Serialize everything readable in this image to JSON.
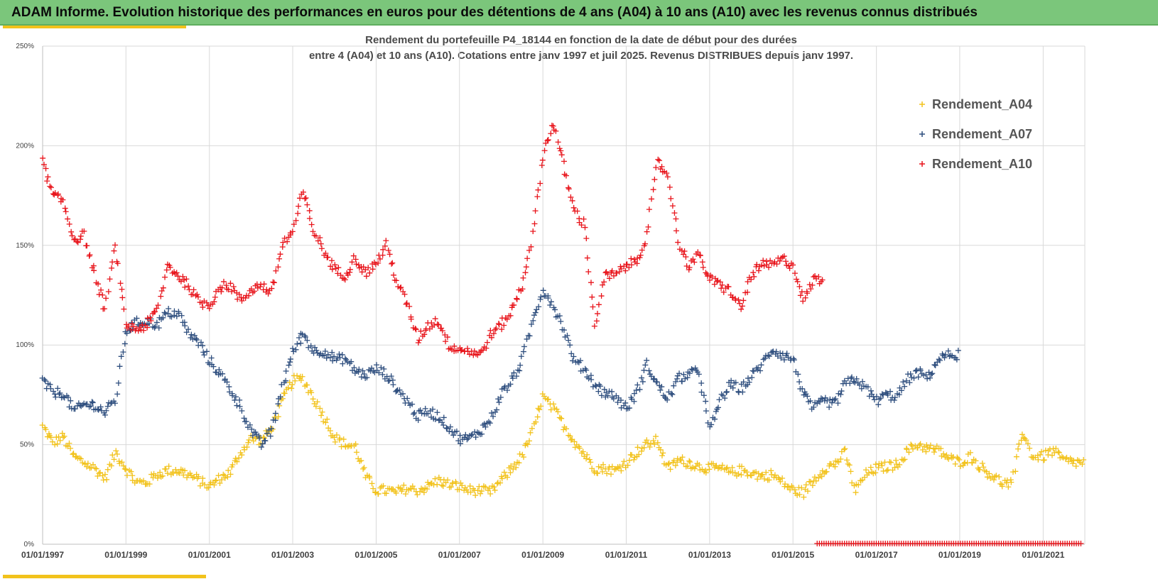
{
  "header": {
    "title": "ADAM Informe. Evolution historique des performances en euros pour des détentions de 4 ans (A04) à 10 ans (A10) avec les revenus connus distribués"
  },
  "colors": {
    "header_bg": "#7bc67b",
    "accent": "#f2c21b",
    "grid": "#d9d9d9",
    "A04": "#f2c21b",
    "A07": "#2e4e7e",
    "A10": "#e8141b"
  },
  "chart_data": {
    "type": "scatter",
    "marker": "plus",
    "title": "Rendement du portefeuille P4_18144 en fonction de la date de début pour des durées",
    "subtitle": "entre 4 (A04) et 10 ans (A10). Cotations entre janv 1997 et juil 2025. Revenus DISTRIBUES depuis janv 1997.",
    "y_tick_labels": [
      "0%",
      "50%",
      "100%",
      "150%",
      "200%",
      "250%"
    ],
    "x_tick_labels": [
      "01/01/1997",
      "01/01/1999",
      "01/01/2001",
      "01/01/2003",
      "01/01/2005",
      "01/01/2007",
      "01/01/2009",
      "01/01/2011",
      "01/01/2013",
      "01/01/2015",
      "01/01/2017",
      "01/01/2019",
      "01/01/2021"
    ],
    "x_range": [
      "1997-01-01",
      "2022-01-01"
    ],
    "y_range": [
      0,
      250
    ],
    "grid": true,
    "legend_position": "right",
    "series": [
      {
        "name": "Rendement_A04",
        "color": "#f2c21b",
        "points": [
          [
            "1997-01",
            59
          ],
          [
            "1997-04",
            51
          ],
          [
            "1997-07",
            54
          ],
          [
            "1997-10",
            44
          ],
          [
            "1998-01",
            41
          ],
          [
            "1998-04",
            38
          ],
          [
            "1998-07",
            33
          ],
          [
            "1998-10",
            46
          ],
          [
            "1999-01",
            38
          ],
          [
            "1999-04",
            31
          ],
          [
            "1999-07",
            31
          ],
          [
            "1999-10",
            35
          ],
          [
            "2000-01",
            37
          ],
          [
            "2000-04",
            37
          ],
          [
            "2000-07",
            35
          ],
          [
            "2000-10",
            32
          ],
          [
            "2001-01",
            29
          ],
          [
            "2001-04",
            33
          ],
          [
            "2001-07",
            36
          ],
          [
            "2001-10",
            46
          ],
          [
            "2002-01",
            53
          ],
          [
            "2002-04",
            52
          ],
          [
            "2002-07",
            58
          ],
          [
            "2002-10",
            72
          ],
          [
            "2003-01",
            82
          ],
          [
            "2003-04",
            83
          ],
          [
            "2003-07",
            74
          ],
          [
            "2003-10",
            64
          ],
          [
            "2004-01",
            54
          ],
          [
            "2004-04",
            50
          ],
          [
            "2004-07",
            49
          ],
          [
            "2004-10",
            34
          ],
          [
            "2005-01",
            27
          ],
          [
            "2005-04",
            27
          ],
          [
            "2005-07",
            26
          ],
          [
            "2005-10",
            28
          ],
          [
            "2006-01",
            27
          ],
          [
            "2006-04",
            29
          ],
          [
            "2006-07",
            32
          ],
          [
            "2006-10",
            30
          ],
          [
            "2007-01",
            29
          ],
          [
            "2007-04",
            27
          ],
          [
            "2007-07",
            27
          ],
          [
            "2007-10",
            26
          ],
          [
            "2008-01",
            32
          ],
          [
            "2008-04",
            38
          ],
          [
            "2008-07",
            44
          ],
          [
            "2008-10",
            56
          ],
          [
            "2009-01",
            74
          ],
          [
            "2009-04",
            68
          ],
          [
            "2009-07",
            60
          ],
          [
            "2009-10",
            52
          ],
          [
            "2010-01",
            45
          ],
          [
            "2010-04",
            38
          ],
          [
            "2010-07",
            38
          ],
          [
            "2010-10",
            37
          ],
          [
            "2011-01",
            41
          ],
          [
            "2011-04",
            46
          ],
          [
            "2011-07",
            50
          ],
          [
            "2011-10",
            52
          ],
          [
            "2012-01",
            38
          ],
          [
            "2012-04",
            42
          ],
          [
            "2012-07",
            41
          ],
          [
            "2012-10",
            39
          ],
          [
            "2013-01",
            38
          ],
          [
            "2013-04",
            38
          ],
          [
            "2013-07",
            36
          ],
          [
            "2013-10",
            37
          ],
          [
            "2014-01",
            36
          ],
          [
            "2014-04",
            34
          ],
          [
            "2014-07",
            35
          ],
          [
            "2014-10",
            31
          ],
          [
            "2015-01",
            27
          ],
          [
            "2015-04",
            26
          ],
          [
            "2015-07",
            32
          ],
          [
            "2015-10",
            38
          ],
          [
            "2016-01",
            40
          ],
          [
            "2016-04",
            46
          ],
          [
            "2016-07",
            27
          ],
          [
            "2016-10",
            35
          ],
          [
            "2017-01",
            38
          ],
          [
            "2017-04",
            39
          ],
          [
            "2017-07",
            40
          ],
          [
            "2017-10",
            47
          ],
          [
            "2018-01",
            50
          ],
          [
            "2018-04",
            48
          ],
          [
            "2018-07",
            47
          ],
          [
            "2018-10",
            43
          ],
          [
            "2019-01",
            41
          ],
          [
            "2019-04",
            44
          ],
          [
            "2019-07",
            39
          ],
          [
            "2019-10",
            35
          ],
          [
            "2020-01",
            31
          ],
          [
            "2020-04",
            30
          ],
          [
            "2020-07",
            57
          ],
          [
            "2020-10",
            44
          ],
          [
            "2021-01",
            44
          ],
          [
            "2021-04",
            47
          ],
          [
            "2021-07",
            42
          ],
          [
            "2021-10",
            41
          ]
        ]
      },
      {
        "name": "Rendement_A07",
        "color": "#2e4e7e",
        "points": [
          [
            "1997-01",
            82
          ],
          [
            "1997-04",
            76
          ],
          [
            "1997-07",
            76
          ],
          [
            "1997-10",
            67
          ],
          [
            "1998-01",
            70
          ],
          [
            "1998-04",
            70
          ],
          [
            "1998-07",
            66
          ],
          [
            "1998-10",
            72
          ],
          [
            "1999-01",
            107
          ],
          [
            "1999-04",
            111
          ],
          [
            "1999-07",
            112
          ],
          [
            "1999-10",
            110
          ],
          [
            "2000-01",
            116
          ],
          [
            "2000-04",
            116
          ],
          [
            "2000-07",
            106
          ],
          [
            "2000-10",
            101
          ],
          [
            "2001-01",
            92
          ],
          [
            "2001-04",
            86
          ],
          [
            "2001-07",
            78
          ],
          [
            "2001-10",
            69
          ],
          [
            "2002-01",
            57
          ],
          [
            "2002-04",
            50
          ],
          [
            "2002-07",
            57
          ],
          [
            "2002-10",
            79
          ],
          [
            "2003-01",
            96
          ],
          [
            "2003-04",
            106
          ],
          [
            "2003-07",
            97
          ],
          [
            "2003-10",
            97
          ],
          [
            "2004-01",
            93
          ],
          [
            "2004-04",
            93
          ],
          [
            "2004-07",
            87
          ],
          [
            "2004-10",
            85
          ],
          [
            "2005-01",
            88
          ],
          [
            "2005-04",
            85
          ],
          [
            "2005-07",
            78
          ],
          [
            "2005-10",
            72
          ],
          [
            "2006-01",
            64
          ],
          [
            "2006-04",
            67
          ],
          [
            "2006-07",
            64
          ],
          [
            "2006-10",
            59
          ],
          [
            "2007-01",
            53
          ],
          [
            "2007-04",
            53
          ],
          [
            "2007-07",
            57
          ],
          [
            "2007-10",
            62
          ],
          [
            "2008-01",
            75
          ],
          [
            "2008-04",
            82
          ],
          [
            "2008-07",
            92
          ],
          [
            "2008-10",
            112
          ],
          [
            "2009-01",
            128
          ],
          [
            "2009-04",
            120
          ],
          [
            "2009-07",
            108
          ],
          [
            "2009-10",
            92
          ],
          [
            "2010-01",
            88
          ],
          [
            "2010-04",
            80
          ],
          [
            "2010-07",
            76
          ],
          [
            "2010-10",
            74
          ],
          [
            "2011-01",
            68
          ],
          [
            "2011-04",
            76
          ],
          [
            "2011-07",
            90
          ],
          [
            "2011-10",
            80
          ],
          [
            "2012-01",
            73
          ],
          [
            "2012-04",
            83
          ],
          [
            "2012-07",
            85
          ],
          [
            "2012-10",
            87
          ],
          [
            "2013-01",
            57
          ],
          [
            "2013-04",
            72
          ],
          [
            "2013-07",
            80
          ],
          [
            "2013-10",
            78
          ],
          [
            "2014-01",
            84
          ],
          [
            "2014-04",
            90
          ],
          [
            "2014-07",
            98
          ],
          [
            "2014-10",
            95
          ],
          [
            "2015-01",
            93
          ],
          [
            "2015-04",
            75
          ],
          [
            "2015-07",
            68
          ],
          [
            "2015-10",
            72
          ],
          [
            "2016-01",
            70
          ],
          [
            "2016-04",
            80
          ],
          [
            "2016-07",
            83
          ],
          [
            "2016-10",
            78
          ],
          [
            "2017-01",
            72
          ],
          [
            "2017-04",
            75
          ],
          [
            "2017-07",
            74
          ],
          [
            "2017-10",
            83
          ],
          [
            "2018-01",
            86
          ],
          [
            "2018-04",
            84
          ],
          [
            "2018-07",
            93
          ],
          [
            "2018-10",
            95
          ]
        ]
      },
      {
        "name": "Rendement_A10",
        "color": "#e8141b",
        "points": [
          [
            "1997-01",
            192
          ],
          [
            "1997-04",
            175
          ],
          [
            "1997-07",
            172
          ],
          [
            "1997-10",
            153
          ],
          [
            "1998-01",
            155
          ],
          [
            "1998-04",
            135
          ],
          [
            "1998-07",
            118
          ],
          [
            "1998-10",
            150
          ],
          [
            "1999-01",
            110
          ],
          [
            "1999-04",
            108
          ],
          [
            "1999-07",
            110
          ],
          [
            "1999-10",
            117
          ],
          [
            "2000-01",
            140
          ],
          [
            "2000-04",
            135
          ],
          [
            "2000-07",
            130
          ],
          [
            "2000-10",
            122
          ],
          [
            "2001-01",
            120
          ],
          [
            "2001-04",
            129
          ],
          [
            "2001-07",
            130
          ],
          [
            "2001-10",
            122
          ],
          [
            "2002-01",
            128
          ],
          [
            "2002-04",
            130
          ],
          [
            "2002-07",
            126
          ],
          [
            "2002-10",
            150
          ],
          [
            "2003-01",
            157
          ],
          [
            "2003-04",
            177
          ],
          [
            "2003-07",
            158
          ],
          [
            "2003-10",
            147
          ],
          [
            "2004-01",
            138
          ],
          [
            "2004-04",
            135
          ],
          [
            "2004-07",
            144
          ],
          [
            "2004-10",
            136
          ],
          [
            "2005-01",
            141
          ],
          [
            "2005-04",
            150
          ],
          [
            "2005-07",
            132
          ],
          [
            "2005-10",
            120
          ],
          [
            "2006-01",
            103
          ],
          [
            "2006-04",
            110
          ],
          [
            "2006-07",
            112
          ],
          [
            "2006-10",
            100
          ],
          [
            "2007-01",
            98
          ],
          [
            "2007-04",
            97
          ],
          [
            "2007-07",
            95
          ],
          [
            "2007-10",
            105
          ],
          [
            "2008-01",
            110
          ],
          [
            "2008-04",
            117
          ],
          [
            "2008-07",
            130
          ],
          [
            "2008-10",
            155
          ],
          [
            "2009-01",
            195
          ],
          [
            "2009-04",
            212
          ],
          [
            "2009-07",
            190
          ],
          [
            "2009-10",
            168
          ],
          [
            "2010-01",
            160
          ],
          [
            "2010-04",
            110
          ],
          [
            "2010-07",
            135
          ],
          [
            "2010-10",
            135
          ],
          [
            "2011-01",
            140
          ],
          [
            "2011-04",
            142
          ],
          [
            "2011-07",
            155
          ],
          [
            "2011-10",
            192
          ],
          [
            "2012-01",
            185
          ],
          [
            "2012-04",
            152
          ],
          [
            "2012-07",
            140
          ],
          [
            "2012-10",
            145
          ],
          [
            "2013-01",
            133
          ],
          [
            "2013-04",
            130
          ],
          [
            "2013-07",
            127
          ],
          [
            "2013-10",
            118
          ],
          [
            "2014-01",
            135
          ],
          [
            "2014-04",
            140
          ],
          [
            "2014-07",
            140
          ],
          [
            "2014-10",
            143
          ],
          [
            "2015-01",
            140
          ],
          [
            "2015-04",
            122
          ],
          [
            "2015-07",
            133
          ]
        ]
      }
    ],
    "annotation_zero_band": {
      "series": "Rendement_A10",
      "from": "2015-08",
      "to": "2021-12",
      "value": 0
    }
  }
}
